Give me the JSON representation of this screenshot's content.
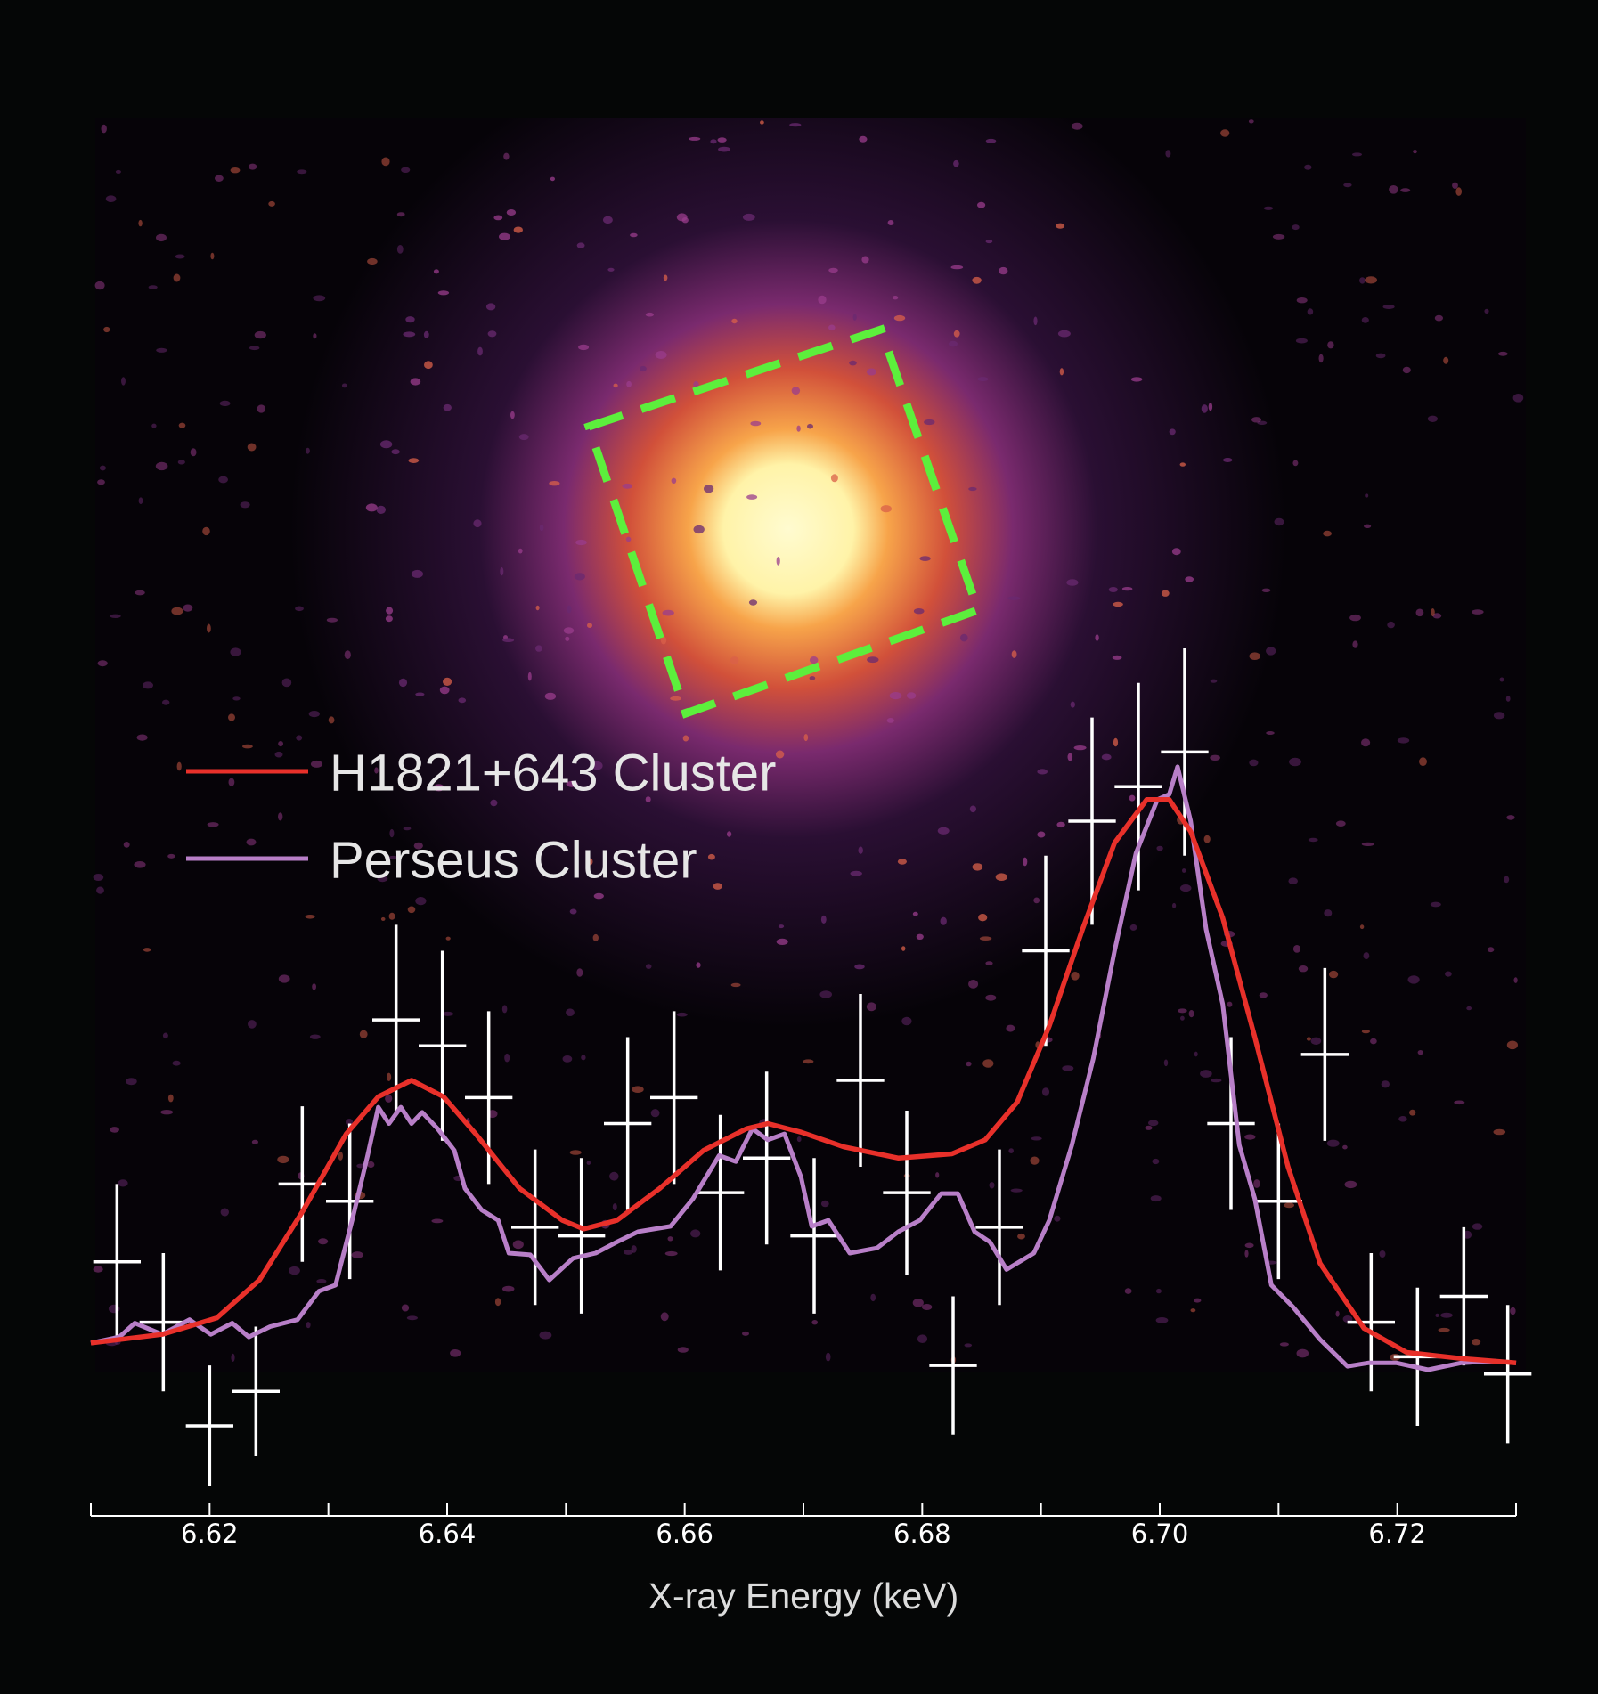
{
  "chart_data": {
    "type": "line",
    "x_label": "X-ray Energy (keV)",
    "xlim": [
      6.61,
      6.73
    ],
    "xticks": [
      6.62,
      6.64,
      6.66,
      6.68,
      {
        "value": 6.7,
        "label": "6.70"
      },
      6.72
    ],
    "xminor_ticks": [
      6.61,
      6.63,
      6.65,
      6.67,
      6.69,
      6.71,
      6.73
    ],
    "ylim": [
      0,
      1
    ],
    "legend": "upper left",
    "series": [
      {
        "name": "H1821+643 Cluster",
        "color": "#e8302a",
        "x": [
          6.61,
          6.616,
          6.6206,
          6.6242,
          6.6279,
          6.6315,
          6.6342,
          6.637,
          6.6397,
          6.6424,
          6.6461,
          6.6497,
          6.6515,
          6.6543,
          6.6579,
          6.6616,
          6.6652,
          6.667,
          6.6698,
          6.6734,
          6.678,
          6.6825,
          6.6853,
          6.688,
          6.6907,
          6.6935,
          6.6962,
          6.6989,
          6.7008,
          6.7026,
          6.7053,
          6.708,
          6.7108,
          6.7135,
          6.7172,
          6.7208,
          6.7254,
          6.73
        ],
        "values": [
          0.196,
          0.206,
          0.225,
          0.269,
          0.35,
          0.438,
          0.481,
          0.5,
          0.481,
          0.438,
          0.375,
          0.338,
          0.328,
          0.338,
          0.375,
          0.419,
          0.444,
          0.45,
          0.44,
          0.423,
          0.41,
          0.415,
          0.431,
          0.475,
          0.563,
          0.675,
          0.775,
          0.825,
          0.825,
          0.788,
          0.688,
          0.55,
          0.4,
          0.288,
          0.213,
          0.185,
          0.178,
          0.173
        ]
      },
      {
        "name": "Perseus Cluster",
        "color": "#b87fc8",
        "x": [
          6.61,
          6.6124,
          6.6137,
          6.616,
          6.6183,
          6.6201,
          6.6219,
          6.6233,
          6.6251,
          6.6274,
          6.6292,
          6.6306,
          6.632,
          6.6333,
          6.6342,
          6.6351,
          6.6361,
          6.637,
          6.6379,
          6.6392,
          6.6406,
          6.6415,
          6.6429,
          6.6443,
          6.6452,
          6.647,
          6.6486,
          6.6506,
          6.6525,
          6.6543,
          6.6561,
          6.6588,
          6.6607,
          6.6629,
          6.6643,
          6.6657,
          6.667,
          6.6684,
          6.6698,
          6.6707,
          6.6721,
          6.6739,
          6.6762,
          6.678,
          6.6798,
          6.6816,
          6.683,
          6.6844,
          6.6857,
          6.6871,
          6.6894,
          6.6907,
          6.6926,
          6.6944,
          6.6962,
          6.698,
          6.6998,
          6.7008,
          6.7015,
          6.7026,
          6.7039,
          6.7053,
          6.7067,
          6.708,
          6.7094,
          6.7112,
          6.7135,
          6.7158,
          6.7176,
          6.7199,
          6.7226,
          6.7254,
          6.7281,
          6.73
        ],
        "values": [
          0.196,
          0.203,
          0.219,
          0.206,
          0.223,
          0.206,
          0.219,
          0.203,
          0.215,
          0.223,
          0.256,
          0.263,
          0.338,
          0.413,
          0.469,
          0.45,
          0.469,
          0.45,
          0.463,
          0.444,
          0.419,
          0.375,
          0.35,
          0.338,
          0.3,
          0.298,
          0.269,
          0.294,
          0.3,
          0.313,
          0.325,
          0.331,
          0.363,
          0.413,
          0.406,
          0.444,
          0.431,
          0.438,
          0.388,
          0.331,
          0.338,
          0.3,
          0.306,
          0.325,
          0.338,
          0.369,
          0.369,
          0.325,
          0.313,
          0.281,
          0.3,
          0.338,
          0.425,
          0.525,
          0.65,
          0.763,
          0.825,
          0.831,
          0.863,
          0.8,
          0.675,
          0.588,
          0.425,
          0.363,
          0.263,
          0.238,
          0.2,
          0.169,
          0.173,
          0.173,
          0.165,
          0.173,
          0.175,
          0.173
        ]
      }
    ],
    "points": {
      "color": "#ffffff",
      "x": [
        6.6122,
        6.6161,
        6.62,
        6.6239,
        6.6278,
        6.6318,
        6.6357,
        6.6396,
        6.6435,
        6.6474,
        6.6513,
        6.6552,
        6.6591,
        6.663,
        6.6669,
        6.6709,
        6.6748,
        6.6787,
        6.6826,
        6.6865,
        6.6904,
        6.6943,
        6.6982,
        6.7021,
        6.706,
        6.71,
        6.7139,
        6.7178,
        6.7217,
        6.7256,
        6.7293
      ],
      "xerr": [
        0.002,
        0.002,
        0.002,
        0.002,
        0.002,
        0.002,
        0.002,
        0.002,
        0.002,
        0.002,
        0.002,
        0.002,
        0.002,
        0.002,
        0.002,
        0.002,
        0.002,
        0.002,
        0.002,
        0.002,
        0.002,
        0.002,
        0.002,
        0.002,
        0.002,
        0.002,
        0.002,
        0.002,
        0.002,
        0.002,
        0.002
      ],
      "values": [
        0.29,
        0.22,
        0.1,
        0.14,
        0.38,
        0.36,
        0.57,
        0.54,
        0.48,
        0.33,
        0.32,
        0.45,
        0.48,
        0.37,
        0.41,
        0.32,
        0.5,
        0.37,
        0.17,
        0.33,
        0.65,
        0.8,
        0.84,
        0.88,
        0.45,
        0.36,
        0.53,
        0.22,
        0.18,
        0.25,
        0.16
      ],
      "yerr": [
        0.09,
        0.08,
        0.07,
        0.075,
        0.09,
        0.09,
        0.11,
        0.11,
        0.1,
        0.09,
        0.09,
        0.1,
        0.1,
        0.09,
        0.1,
        0.09,
        0.1,
        0.095,
        0.08,
        0.09,
        0.11,
        0.12,
        0.12,
        0.12,
        0.1,
        0.09,
        0.1,
        0.08,
        0.08,
        0.08,
        0.08
      ]
    }
  }
}
